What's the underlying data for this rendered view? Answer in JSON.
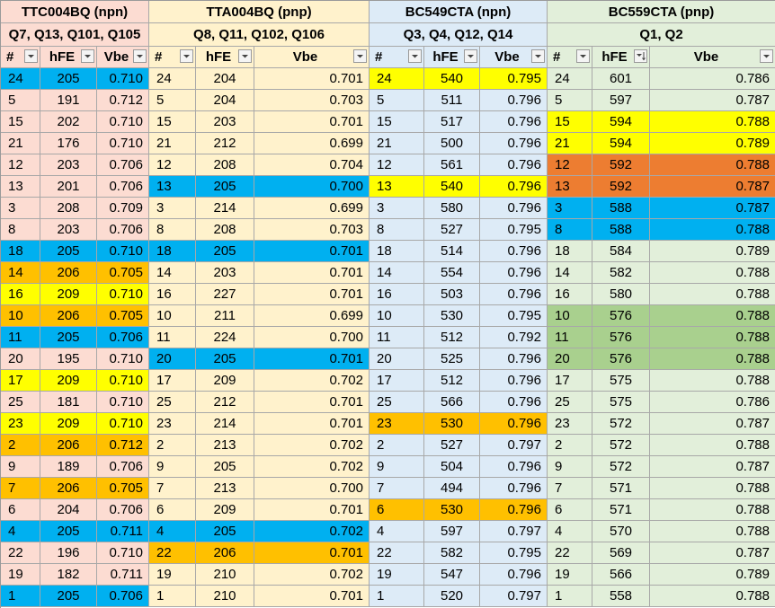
{
  "colors": {
    "g1": "#fcdcd2",
    "g2": "#fff2cc",
    "g3": "#ddebf7",
    "g4": "#e2efda",
    "blue": "#00b0f0",
    "yellow": "#ffff00",
    "orange": "#ffc000",
    "dark_orange": "#ed7d31",
    "green": "#a9d08e"
  },
  "groups": [
    {
      "title": "TTC004BQ (npn)",
      "subtitle": "Q7, Q13, Q101, Q105",
      "bg": "g1",
      "headers": [
        "#",
        "hFE",
        "Vbe"
      ],
      "sort_col": -1,
      "rows": [
        {
          "n": "24",
          "h": "205",
          "v": "0.710",
          "hl": "blue"
        },
        {
          "n": "5",
          "h": "191",
          "v": "0.712",
          "hl": ""
        },
        {
          "n": "15",
          "h": "202",
          "v": "0.710",
          "hl": ""
        },
        {
          "n": "21",
          "h": "176",
          "v": "0.710",
          "hl": ""
        },
        {
          "n": "12",
          "h": "203",
          "v": "0.706",
          "hl": ""
        },
        {
          "n": "13",
          "h": "201",
          "v": "0.706",
          "hl": ""
        },
        {
          "n": "3",
          "h": "208",
          "v": "0.709",
          "hl": ""
        },
        {
          "n": "8",
          "h": "203",
          "v": "0.706",
          "hl": ""
        },
        {
          "n": "18",
          "h": "205",
          "v": "0.710",
          "hl": "blue"
        },
        {
          "n": "14",
          "h": "206",
          "v": "0.705",
          "hl": "orange"
        },
        {
          "n": "16",
          "h": "209",
          "v": "0.710",
          "hl": "yellow"
        },
        {
          "n": "10",
          "h": "206",
          "v": "0.705",
          "hl": "orange"
        },
        {
          "n": "11",
          "h": "205",
          "v": "0.706",
          "hl": "blue"
        },
        {
          "n": "20",
          "h": "195",
          "v": "0.710",
          "hl": ""
        },
        {
          "n": "17",
          "h": "209",
          "v": "0.710",
          "hl": "yellow"
        },
        {
          "n": "25",
          "h": "181",
          "v": "0.710",
          "hl": ""
        },
        {
          "n": "23",
          "h": "209",
          "v": "0.710",
          "hl": "yellow"
        },
        {
          "n": "2",
          "h": "206",
          "v": "0.712",
          "hl": "orange"
        },
        {
          "n": "9",
          "h": "189",
          "v": "0.706",
          "hl": ""
        },
        {
          "n": "7",
          "h": "206",
          "v": "0.705",
          "hl": "orange"
        },
        {
          "n": "6",
          "h": "204",
          "v": "0.706",
          "hl": ""
        },
        {
          "n": "4",
          "h": "205",
          "v": "0.711",
          "hl": "blue"
        },
        {
          "n": "22",
          "h": "196",
          "v": "0.710",
          "hl": ""
        },
        {
          "n": "19",
          "h": "182",
          "v": "0.711",
          "hl": ""
        },
        {
          "n": "1",
          "h": "205",
          "v": "0.706",
          "hl": "blue"
        }
      ]
    },
    {
      "title": "TTA004BQ (pnp)",
      "subtitle": "Q8, Q11, Q102, Q106",
      "bg": "g2",
      "headers": [
        "#",
        "hFE",
        "Vbe"
      ],
      "sort_col": -1,
      "rows": [
        {
          "n": "24",
          "h": "204",
          "v": "0.701",
          "hl": ""
        },
        {
          "n": "5",
          "h": "204",
          "v": "0.703",
          "hl": ""
        },
        {
          "n": "15",
          "h": "203",
          "v": "0.701",
          "hl": ""
        },
        {
          "n": "21",
          "h": "212",
          "v": "0.699",
          "hl": ""
        },
        {
          "n": "12",
          "h": "208",
          "v": "0.704",
          "hl": ""
        },
        {
          "n": "13",
          "h": "205",
          "v": "0.700",
          "hl": "blue"
        },
        {
          "n": "3",
          "h": "214",
          "v": "0.699",
          "hl": ""
        },
        {
          "n": "8",
          "h": "208",
          "v": "0.703",
          "hl": ""
        },
        {
          "n": "18",
          "h": "205",
          "v": "0.701",
          "hl": "blue"
        },
        {
          "n": "14",
          "h": "203",
          "v": "0.701",
          "hl": ""
        },
        {
          "n": "16",
          "h": "227",
          "v": "0.701",
          "hl": ""
        },
        {
          "n": "10",
          "h": "211",
          "v": "0.699",
          "hl": ""
        },
        {
          "n": "11",
          "h": "224",
          "v": "0.700",
          "hl": ""
        },
        {
          "n": "20",
          "h": "205",
          "v": "0.701",
          "hl": "blue"
        },
        {
          "n": "17",
          "h": "209",
          "v": "0.702",
          "hl": ""
        },
        {
          "n": "25",
          "h": "212",
          "v": "0.701",
          "hl": ""
        },
        {
          "n": "23",
          "h": "214",
          "v": "0.701",
          "hl": ""
        },
        {
          "n": "2",
          "h": "213",
          "v": "0.702",
          "hl": ""
        },
        {
          "n": "9",
          "h": "205",
          "v": "0.702",
          "hl": ""
        },
        {
          "n": "7",
          "h": "213",
          "v": "0.700",
          "hl": ""
        },
        {
          "n": "6",
          "h": "209",
          "v": "0.701",
          "hl": ""
        },
        {
          "n": "4",
          "h": "205",
          "v": "0.702",
          "hl": "blue"
        },
        {
          "n": "22",
          "h": "206",
          "v": "0.701",
          "hl": "orange"
        },
        {
          "n": "19",
          "h": "210",
          "v": "0.702",
          "hl": ""
        },
        {
          "n": "1",
          "h": "210",
          "v": "0.701",
          "hl": ""
        }
      ]
    },
    {
      "title": "BC549CTA (npn)",
      "subtitle": "Q3, Q4, Q12, Q14",
      "bg": "g3",
      "headers": [
        "#",
        "hFE",
        "Vbe"
      ],
      "sort_col": -1,
      "rows": [
        {
          "n": "24",
          "h": "540",
          "v": "0.795",
          "hl": "yellow"
        },
        {
          "n": "5",
          "h": "511",
          "v": "0.796",
          "hl": ""
        },
        {
          "n": "15",
          "h": "517",
          "v": "0.796",
          "hl": ""
        },
        {
          "n": "21",
          "h": "500",
          "v": "0.796",
          "hl": ""
        },
        {
          "n": "12",
          "h": "561",
          "v": "0.796",
          "hl": ""
        },
        {
          "n": "13",
          "h": "540",
          "v": "0.796",
          "hl": "yellow"
        },
        {
          "n": "3",
          "h": "580",
          "v": "0.796",
          "hl": ""
        },
        {
          "n": "8",
          "h": "527",
          "v": "0.795",
          "hl": ""
        },
        {
          "n": "18",
          "h": "514",
          "v": "0.796",
          "hl": ""
        },
        {
          "n": "14",
          "h": "554",
          "v": "0.796",
          "hl": ""
        },
        {
          "n": "16",
          "h": "503",
          "v": "0.796",
          "hl": ""
        },
        {
          "n": "10",
          "h": "530",
          "v": "0.795",
          "hl": ""
        },
        {
          "n": "11",
          "h": "512",
          "v": "0.792",
          "hl": ""
        },
        {
          "n": "20",
          "h": "525",
          "v": "0.796",
          "hl": ""
        },
        {
          "n": "17",
          "h": "512",
          "v": "0.796",
          "hl": ""
        },
        {
          "n": "25",
          "h": "566",
          "v": "0.796",
          "hl": ""
        },
        {
          "n": "23",
          "h": "530",
          "v": "0.796",
          "hl": "orange"
        },
        {
          "n": "2",
          "h": "527",
          "v": "0.797",
          "hl": ""
        },
        {
          "n": "9",
          "h": "504",
          "v": "0.796",
          "hl": ""
        },
        {
          "n": "7",
          "h": "494",
          "v": "0.796",
          "hl": ""
        },
        {
          "n": "6",
          "h": "530",
          "v": "0.796",
          "hl": "orange"
        },
        {
          "n": "4",
          "h": "597",
          "v": "0.797",
          "hl": ""
        },
        {
          "n": "22",
          "h": "582",
          "v": "0.795",
          "hl": ""
        },
        {
          "n": "19",
          "h": "547",
          "v": "0.796",
          "hl": ""
        },
        {
          "n": "1",
          "h": "520",
          "v": "0.797",
          "hl": ""
        }
      ]
    },
    {
      "title": "BC559CTA (pnp)",
      "subtitle": "Q1, Q2",
      "bg": "g4",
      "headers": [
        "#",
        "hFE",
        "Vbe"
      ],
      "sort_col": 1,
      "rows": [
        {
          "n": "24",
          "h": "601",
          "v": "0.786",
          "hl": ""
        },
        {
          "n": "5",
          "h": "597",
          "v": "0.787",
          "hl": ""
        },
        {
          "n": "15",
          "h": "594",
          "v": "0.788",
          "hl": "yellow"
        },
        {
          "n": "21",
          "h": "594",
          "v": "0.789",
          "hl": "yellow"
        },
        {
          "n": "12",
          "h": "592",
          "v": "0.788",
          "hl": "dark_orange"
        },
        {
          "n": "13",
          "h": "592",
          "v": "0.787",
          "hl": "dark_orange"
        },
        {
          "n": "3",
          "h": "588",
          "v": "0.787",
          "hl": "blue"
        },
        {
          "n": "8",
          "h": "588",
          "v": "0.788",
          "hl": "blue"
        },
        {
          "n": "18",
          "h": "584",
          "v": "0.789",
          "hl": ""
        },
        {
          "n": "14",
          "h": "582",
          "v": "0.788",
          "hl": ""
        },
        {
          "n": "16",
          "h": "580",
          "v": "0.788",
          "hl": ""
        },
        {
          "n": "10",
          "h": "576",
          "v": "0.788",
          "hl": "green"
        },
        {
          "n": "11",
          "h": "576",
          "v": "0.788",
          "hl": "green"
        },
        {
          "n": "20",
          "h": "576",
          "v": "0.788",
          "hl": "green"
        },
        {
          "n": "17",
          "h": "575",
          "v": "0.788",
          "hl": ""
        },
        {
          "n": "25",
          "h": "575",
          "v": "0.786",
          "hl": ""
        },
        {
          "n": "23",
          "h": "572",
          "v": "0.787",
          "hl": ""
        },
        {
          "n": "2",
          "h": "572",
          "v": "0.788",
          "hl": ""
        },
        {
          "n": "9",
          "h": "572",
          "v": "0.787",
          "hl": ""
        },
        {
          "n": "7",
          "h": "571",
          "v": "0.788",
          "hl": ""
        },
        {
          "n": "6",
          "h": "571",
          "v": "0.788",
          "hl": ""
        },
        {
          "n": "4",
          "h": "570",
          "v": "0.788",
          "hl": ""
        },
        {
          "n": "22",
          "h": "569",
          "v": "0.787",
          "hl": ""
        },
        {
          "n": "19",
          "h": "566",
          "v": "0.789",
          "hl": ""
        },
        {
          "n": "1",
          "h": "558",
          "v": "0.788",
          "hl": ""
        }
      ]
    }
  ]
}
